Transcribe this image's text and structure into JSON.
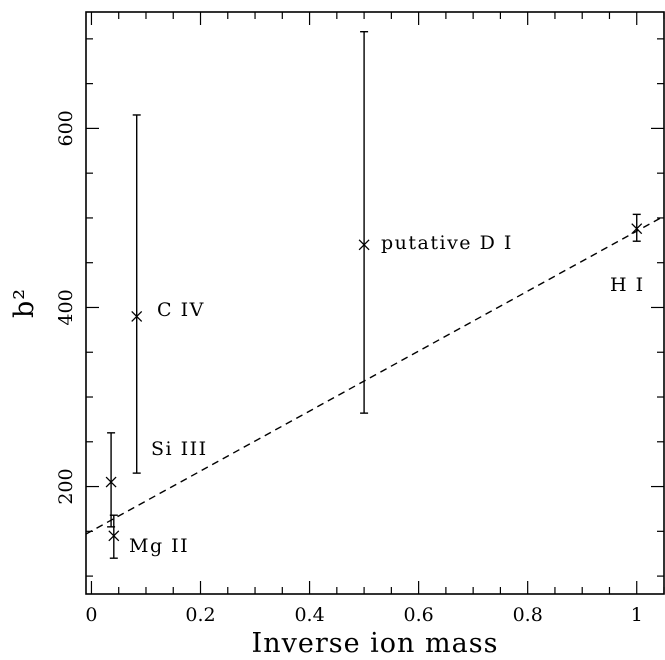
{
  "chart_data": {
    "type": "scatter",
    "xlabel": "Inverse ion mass",
    "ylabel": "b²",
    "xlim": [
      -0.01,
      1.05
    ],
    "ylim": [
      80,
      730
    ],
    "xticks": [
      "0",
      "0.2",
      "0.4",
      "0.6",
      "0.8",
      "1"
    ],
    "xtick_values": [
      0,
      0.2,
      0.4,
      0.6,
      0.8,
      1
    ],
    "yticks": [
      "200",
      "400",
      "600"
    ],
    "ytick_values": [
      200,
      400,
      600
    ],
    "grid": false,
    "points": [
      {
        "label": "Mg II",
        "x": 0.041,
        "y": 145,
        "err_low": 120,
        "err_high": 168
      },
      {
        "label": "Si III",
        "x": 0.036,
        "y": 205,
        "err_low": 155,
        "err_high": 260
      },
      {
        "label": "C IV",
        "x": 0.083,
        "y": 390,
        "err_low": 215,
        "err_high": 615
      },
      {
        "label": "putative D I",
        "x": 0.5,
        "y": 470,
        "err_low": 282,
        "err_high": 708
      },
      {
        "label": "H I",
        "x": 1.0,
        "y": 488,
        "err_low": 474,
        "err_high": 504
      }
    ],
    "fit_line": {
      "x": [
        -0.01,
        1.05
      ],
      "y": [
        147,
        502
      ]
    }
  }
}
